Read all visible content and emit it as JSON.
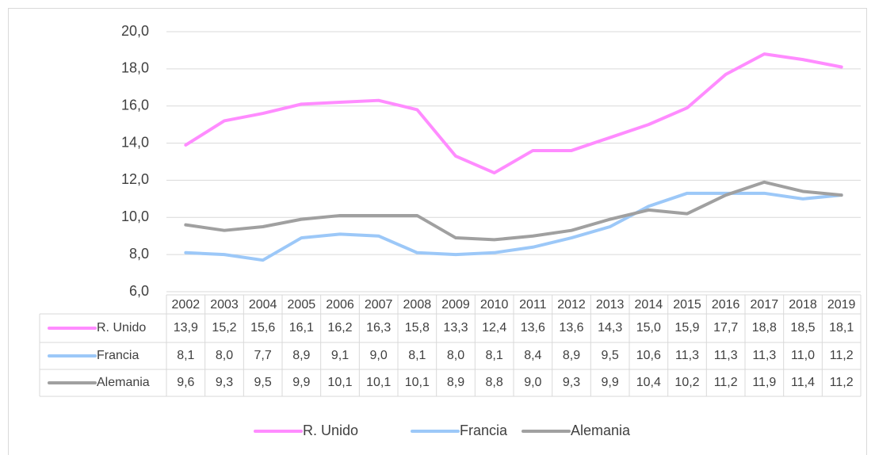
{
  "chart_data": {
    "type": "line",
    "categories": [
      "2002",
      "2003",
      "2004",
      "2005",
      "2006",
      "2007",
      "2008",
      "2009",
      "2010",
      "2011",
      "2012",
      "2013",
      "2014",
      "2015",
      "2016",
      "2017",
      "2018",
      "2019"
    ],
    "series": [
      {
        "name": "R. Unido",
        "color": "#ff8cff",
        "values": [
          13.9,
          15.2,
          15.6,
          16.1,
          16.2,
          16.3,
          15.8,
          13.3,
          12.4,
          13.6,
          13.6,
          14.3,
          15.0,
          15.9,
          17.7,
          18.8,
          18.5,
          18.1
        ],
        "value_labels": [
          "13,9",
          "15,2",
          "15,6",
          "16,1",
          "16,2",
          "16,3",
          "15,8",
          "13,3",
          "12,4",
          "13,6",
          "13,6",
          "14,3",
          "15,0",
          "15,9",
          "17,7",
          "18,8",
          "18,5",
          "18,1"
        ]
      },
      {
        "name": "Francia",
        "color": "#9cc8f8",
        "values": [
          8.1,
          8.0,
          7.7,
          8.9,
          9.1,
          9.0,
          8.1,
          8.0,
          8.1,
          8.4,
          8.9,
          9.5,
          10.6,
          11.3,
          11.3,
          11.3,
          11.0,
          11.2
        ],
        "value_labels": [
          "8,1",
          "8,0",
          "7,7",
          "8,9",
          "9,1",
          "9,0",
          "8,1",
          "8,0",
          "8,1",
          "8,4",
          "8,9",
          "9,5",
          "10,6",
          "11,3",
          "11,3",
          "11,3",
          "11,0",
          "11,2"
        ]
      },
      {
        "name": "Alemania",
        "color": "#a0a0a0",
        "values": [
          9.6,
          9.3,
          9.5,
          9.9,
          10.1,
          10.1,
          10.1,
          8.9,
          8.8,
          9.0,
          9.3,
          9.9,
          10.4,
          10.2,
          11.2,
          11.9,
          11.4,
          11.2
        ],
        "value_labels": [
          "9,6",
          "9,3",
          "9,5",
          "9,9",
          "10,1",
          "10,1",
          "10,1",
          "8,9",
          "8,8",
          "9,0",
          "9,3",
          "9,9",
          "10,4",
          "10,2",
          "11,2",
          "11,9",
          "11,4",
          "11,2"
        ]
      }
    ],
    "ylim": [
      6,
      20
    ],
    "yticks": [
      {
        "value": 6,
        "label": "6,0"
      },
      {
        "value": 8,
        "label": "8,0"
      },
      {
        "value": 10,
        "label": "10,0"
      },
      {
        "value": 12,
        "label": "12,0"
      },
      {
        "value": 14,
        "label": "14,0"
      },
      {
        "value": 16,
        "label": "16,0"
      },
      {
        "value": 18,
        "label": "18,0"
      },
      {
        "value": 20,
        "label": "20,0"
      }
    ],
    "grid": true,
    "legend": "bottom"
  }
}
